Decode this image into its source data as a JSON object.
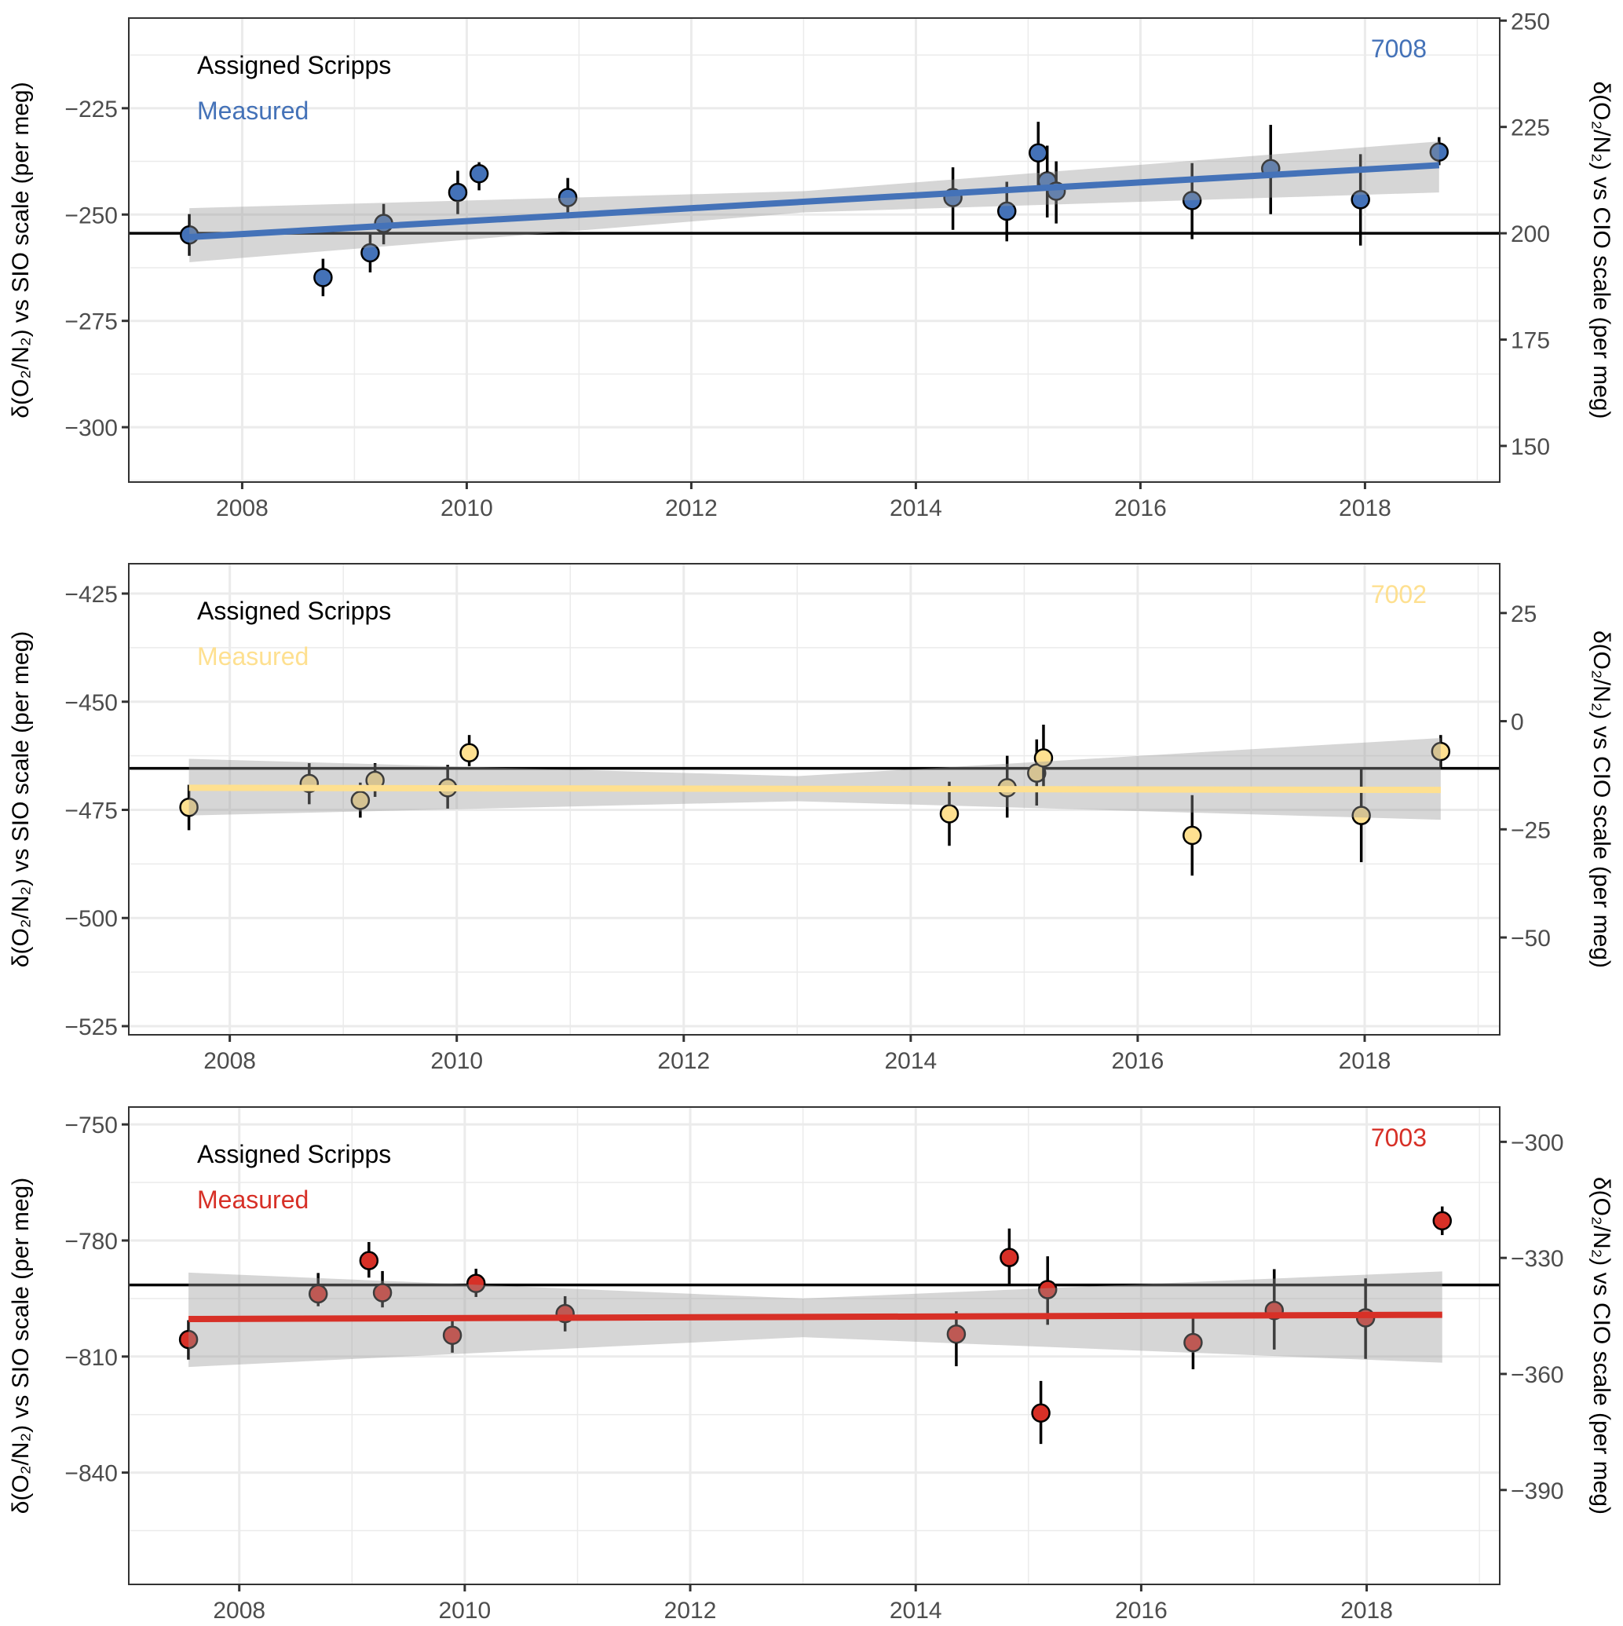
{
  "figure": {
    "description": "Three stacked panels of delta(O2/N2) measurements for cylinders 7008, 7002, 7003 vs time"
  },
  "chart_data": [
    {
      "type": "scatter",
      "panel_id": "7008",
      "accent_color": "#4472b8",
      "legend": [
        {
          "label": "Assigned Scripps",
          "color": "#000000"
        },
        {
          "label": "Measured",
          "color": "#4472b8"
        }
      ],
      "ylabel_left": "δ(O₂/N₂) vs SIO scale (per meg)",
      "ylabel_right": "δ(O₂/N₂) vs CIO scale (per meg)",
      "xlabel": "",
      "xlim": [
        2006.99,
        2019.2
      ],
      "ylim": [
        -312.9,
        -203.8
      ],
      "x_ticks": [
        2008,
        2010,
        2012,
        2014,
        2016,
        2018
      ],
      "x_tick_labels": [
        "2008",
        "2010",
        "2012",
        "2014",
        "2016",
        "2018"
      ],
      "y_ticks_left": [
        -225,
        -250,
        -275,
        -300
      ],
      "y_tick_labels_left": [
        "−225",
        "−250",
        "−275",
        "−300"
      ],
      "right_axis_offset": 454.4,
      "y_ticks_right": [
        250,
        225,
        200,
        175,
        150
      ],
      "y_tick_labels_right": [
        "250",
        "225",
        "200",
        "175",
        "150"
      ],
      "assigned_value": -254.4,
      "points": [
        {
          "x": 2007.53,
          "y": -254.8,
          "lo": -259.7,
          "hi": -249.9
        },
        {
          "x": 2008.72,
          "y": -264.8,
          "lo": -269.2,
          "hi": -260.4
        },
        {
          "x": 2009.14,
          "y": -259.0,
          "lo": -263.6,
          "hi": -254.3
        },
        {
          "x": 2009.26,
          "y": -252.1,
          "lo": -257.0,
          "hi": -247.5
        },
        {
          "x": 2009.92,
          "y": -244.8,
          "lo": -249.9,
          "hi": -239.7
        },
        {
          "x": 2010.11,
          "y": -240.4,
          "lo": -244.3,
          "hi": -237.7
        },
        {
          "x": 2010.9,
          "y": -246.0,
          "lo": -250.9,
          "hi": -241.4
        },
        {
          "x": 2014.33,
          "y": -246.0,
          "lo": -253.6,
          "hi": -238.9
        },
        {
          "x": 2014.81,
          "y": -249.2,
          "lo": -256.3,
          "hi": -242.3
        },
        {
          "x": 2015.09,
          "y": -235.5,
          "lo": -243.6,
          "hi": -228.2
        },
        {
          "x": 2015.17,
          "y": -242.1,
          "lo": -250.7,
          "hi": -233.8
        },
        {
          "x": 2015.25,
          "y": -244.5,
          "lo": -252.1,
          "hi": -237.5
        },
        {
          "x": 2016.46,
          "y": -246.7,
          "lo": -255.8,
          "hi": -237.9
        },
        {
          "x": 2017.16,
          "y": -239.2,
          "lo": -249.9,
          "hi": -228.9
        },
        {
          "x": 2017.96,
          "y": -246.5,
          "lo": -257.3,
          "hi": -235.8
        },
        {
          "x": 2018.66,
          "y": -235.3,
          "lo": -238.4,
          "hi": -231.8
        }
      ],
      "fit": {
        "x": [
          2007.53,
          2018.66
        ],
        "y": [
          -255.3,
          -238.4
        ]
      },
      "ribbon": {
        "x": [
          2007.53,
          2013.0,
          2018.66
        ],
        "lo": [
          -261.2,
          -249.5,
          -244.8
        ],
        "hi": [
          -248.5,
          -244.5,
          -232.8
        ]
      }
    },
    {
      "type": "scatter",
      "panel_id": "7002",
      "accent_color": "#fee090",
      "legend": [
        {
          "label": "Assigned Scripps",
          "color": "#000000"
        },
        {
          "label": "Measured",
          "color": "#fee090"
        }
      ],
      "ylabel_left": "δ(O₂/N₂) vs SIO scale (per meg)",
      "ylabel_right": "δ(O₂/N₂) vs CIO scale (per meg)",
      "xlabel": "",
      "xlim": [
        2007.11,
        2019.19
      ],
      "ylim": [
        -527.0,
        -418.1
      ],
      "x_ticks": [
        2008,
        2010,
        2012,
        2014,
        2016,
        2018
      ],
      "x_tick_labels": [
        "2008",
        "2010",
        "2012",
        "2014",
        "2016",
        "2018"
      ],
      "y_ticks_left": [
        -425,
        -450,
        -475,
        -500,
        -525
      ],
      "y_tick_labels_left": [
        "−425",
        "−450",
        "−475",
        "−500",
        "−525"
      ],
      "right_axis_offset": 454.5,
      "y_ticks_right": [
        25,
        0,
        -25,
        -50
      ],
      "y_tick_labels_right": [
        "25",
        "0",
        "−25",
        "−50"
      ],
      "assigned_value": -465.4,
      "points": [
        {
          "x": 2007.64,
          "y": -474.4,
          "lo": -479.7,
          "hi": -469.2
        },
        {
          "x": 2008.7,
          "y": -468.9,
          "lo": -473.7,
          "hi": -464.2
        },
        {
          "x": 2009.15,
          "y": -472.8,
          "lo": -476.8,
          "hi": -468.7
        },
        {
          "x": 2009.28,
          "y": -468.2,
          "lo": -472.0,
          "hi": -464.2
        },
        {
          "x": 2009.92,
          "y": -469.9,
          "lo": -474.7,
          "hi": -464.6
        },
        {
          "x": 2010.11,
          "y": -461.8,
          "lo": -464.9,
          "hi": -457.7
        },
        {
          "x": 2014.34,
          "y": -475.9,
          "lo": -483.3,
          "hi": -468.5
        },
        {
          "x": 2014.85,
          "y": -469.9,
          "lo": -476.8,
          "hi": -462.5
        },
        {
          "x": 2015.11,
          "y": -466.5,
          "lo": -474.0,
          "hi": -458.7
        },
        {
          "x": 2015.17,
          "y": -463.0,
          "lo": -469.7,
          "hi": -455.3
        },
        {
          "x": 2016.48,
          "y": -480.9,
          "lo": -490.2,
          "hi": -471.6
        },
        {
          "x": 2017.97,
          "y": -476.3,
          "lo": -487.1,
          "hi": -465.6
        },
        {
          "x": 2018.67,
          "y": -461.5,
          "lo": -465.1,
          "hi": -457.7
        }
      ],
      "fit": {
        "x": [
          2007.64,
          2018.67
        ],
        "y": [
          -469.9,
          -470.4
        ]
      },
      "ribbon": {
        "x": [
          2007.64,
          2013.0,
          2018.67
        ],
        "lo": [
          -476.3,
          -473.0,
          -477.3
        ],
        "hi": [
          -463.2,
          -467.2,
          -458.4
        ]
      }
    },
    {
      "type": "scatter",
      "panel_id": "7003",
      "accent_color": "#d73027",
      "legend": [
        {
          "label": "Assigned Scripps",
          "color": "#000000"
        },
        {
          "label": "Measured",
          "color": "#d73027"
        }
      ],
      "ylabel_left": "δ(O₂/N₂) vs SIO scale (per meg)",
      "ylabel_right": "δ(O₂/N₂) vs CIO scale (per meg)",
      "xlabel": "",
      "xlim": [
        2007.02,
        2019.18
      ],
      "ylim": [
        -868.9,
        -745.5
      ],
      "x_ticks": [
        2008,
        2010,
        2012,
        2014,
        2016,
        2018
      ],
      "x_tick_labels": [
        "2008",
        "2010",
        "2012",
        "2014",
        "2016",
        "2018"
      ],
      "y_ticks_left": [
        -750,
        -780,
        -810,
        -840
      ],
      "y_tick_labels_left": [
        "−750",
        "−780",
        "−810",
        "−840"
      ],
      "right_axis_offset": 454.5,
      "y_ticks_right": [
        -300,
        -330,
        -360,
        -390
      ],
      "y_tick_labels_right": [
        "−300",
        "−330",
        "−360",
        "−390"
      ],
      "assigned_value": -791.5,
      "points": [
        {
          "x": 2007.55,
          "y": -805.6,
          "lo": -810.8,
          "hi": -800.6
        },
        {
          "x": 2008.7,
          "y": -793.8,
          "lo": -797.0,
          "hi": -788.4
        },
        {
          "x": 2009.15,
          "y": -785.2,
          "lo": -789.6,
          "hi": -780.4
        },
        {
          "x": 2009.27,
          "y": -793.5,
          "lo": -797.3,
          "hi": -787.9
        },
        {
          "x": 2009.89,
          "y": -804.5,
          "lo": -809.0,
          "hi": -800.2
        },
        {
          "x": 2010.1,
          "y": -791.1,
          "lo": -794.6,
          "hi": -787.3
        },
        {
          "x": 2010.89,
          "y": -798.9,
          "lo": -803.5,
          "hi": -794.4
        },
        {
          "x": 2014.36,
          "y": -804.2,
          "lo": -812.5,
          "hi": -798.3
        },
        {
          "x": 2014.83,
          "y": -784.4,
          "lo": -791.4,
          "hi": -776.9
        },
        {
          "x": 2015.11,
          "y": -824.6,
          "lo": -832.6,
          "hi": -816.3
        },
        {
          "x": 2015.17,
          "y": -792.7,
          "lo": -801.8,
          "hi": -784.1
        },
        {
          "x": 2016.46,
          "y": -806.4,
          "lo": -813.3,
          "hi": -799.7
        },
        {
          "x": 2017.18,
          "y": -798.1,
          "lo": -808.2,
          "hi": -787.4
        },
        {
          "x": 2017.99,
          "y": -800.0,
          "lo": -810.6,
          "hi": -789.8
        },
        {
          "x": 2018.67,
          "y": -774.9,
          "lo": -778.6,
          "hi": -771.2
        }
      ],
      "fit": {
        "x": [
          2007.55,
          2018.67
        ],
        "y": [
          -800.3,
          -799.2
        ]
      },
      "ribbon": {
        "x": [
          2007.55,
          2013.0,
          2018.67
        ],
        "lo": [
          -812.7,
          -805.0,
          -811.6
        ],
        "hi": [
          -788.3,
          -795.0,
          -788.0
        ]
      }
    }
  ]
}
